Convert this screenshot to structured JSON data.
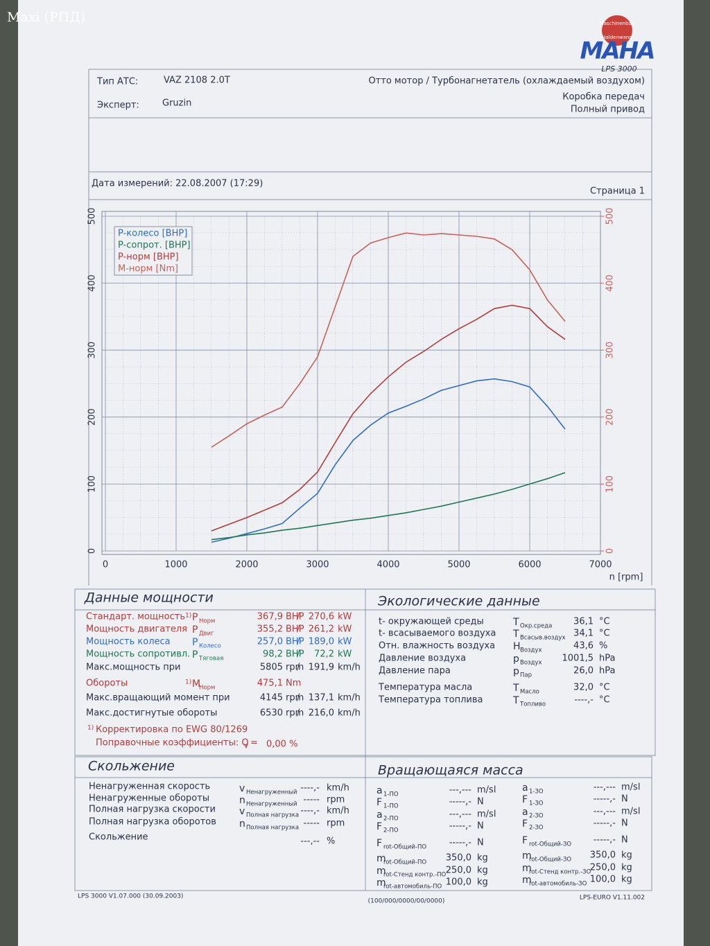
{
  "watermark": "Maxi (РПД)",
  "logo": {
    "ring_top": "Maschinenbau",
    "ring_bottom": "Haldenwang",
    "brand": "MAHA",
    "model": "LPS 3000"
  },
  "header": {
    "type_label": "Тип АТС:",
    "type_value": "VAZ 2108 2.0T",
    "expert_label": "Эксперт:",
    "expert_value": "Gruzin",
    "engine": "Отто мотор / Турбонагнетатель (охлаждаемый воздухом)",
    "gearbox": "Коробка передач",
    "drive": "Полный привод"
  },
  "date": {
    "measured": "Дата измерений: 22.08.2007 (17:29)",
    "page": "Страница 1"
  },
  "chart_data": {
    "type": "line",
    "x_label": "n [rpm]",
    "x": [
      1500,
      1750,
      2000,
      2250,
      2500,
      2750,
      3000,
      3250,
      3500,
      3750,
      4000,
      4250,
      4500,
      4750,
      5000,
      5250,
      5500,
      5750,
      6000,
      6250,
      6500
    ],
    "series": [
      {
        "name": "P-колесо [BHP]",
        "color": "#2e6cc4",
        "values": [
          13,
          19,
          26,
          33,
          41,
          64,
          86,
          129,
          165,
          188,
          206,
          216,
          227,
          240,
          247,
          254,
          257,
          253,
          245,
          216,
          182
        ]
      },
      {
        "name": "P-сопрот. [BHP]",
        "color": "#1f7752",
        "values": [
          17,
          20,
          24,
          27,
          31,
          34,
          38,
          42,
          46,
          49,
          53,
          57,
          62,
          67,
          73,
          79,
          85,
          92,
          100,
          108,
          117
        ]
      },
      {
        "name": "P-норм [BHP]",
        "color": "#b23c3c",
        "values": [
          30,
          40,
          50,
          61,
          72,
          92,
          118,
          162,
          205,
          235,
          260,
          282,
          298,
          316,
          332,
          346,
          362,
          367,
          362,
          335,
          316
        ]
      },
      {
        "name": "M-норм [Nm]",
        "color": "#c4625b",
        "axis": "y2",
        "values": [
          155,
          172,
          190,
          203,
          215,
          250,
          290,
          365,
          440,
          460,
          468,
          475,
          472,
          474,
          472,
          470,
          466,
          450,
          420,
          375,
          343
        ]
      }
    ],
    "xlim": [
      0,
      7000
    ],
    "xticks": [
      0,
      1000,
      2000,
      3000,
      4000,
      5000,
      6000,
      7000
    ],
    "ylim": [
      0,
      500
    ],
    "yticks": [
      0,
      100,
      200,
      300,
      400,
      500
    ],
    "y2lim": [
      0,
      500
    ],
    "y2ticks": [
      0,
      100,
      200,
      300,
      400,
      500
    ],
    "y2_color": "#c4625b",
    "grid": true,
    "legend": "upper left"
  },
  "power": {
    "title": "Данные мощности",
    "rows": [
      {
        "label": "Стандарт. мощность",
        "note": "1)",
        "sym": "P",
        "sub": "Норм",
        "v1": "367,9",
        "u1": "BHP",
        "sep": "/",
        "v2": "270,6",
        "u2": "kW",
        "color": "#b23c3c"
      },
      {
        "label": "Мощность двигателя",
        "sym": "P",
        "sub": "Двиг",
        "v1": "355,2",
        "u1": "BHP",
        "sep": "/",
        "v2": "261,2",
        "u2": "kW",
        "color": "#b23c3c"
      },
      {
        "label": "Мощность колеса",
        "sym": "P",
        "sub": "Колесо",
        "v1": "257,0",
        "u1": "BHP",
        "sep": "/",
        "v2": "189,0",
        "u2": "kW",
        "color": "#2e6cc4"
      },
      {
        "label": "Мощность сопротивл.",
        "sym": "P",
        "sub": "Тяговая",
        "v1": "98,2",
        "u1": "BHP",
        "sep": "/",
        "v2": "72,2",
        "u2": "kW",
        "color": "#1f7752"
      },
      {
        "label": "Макс.мощность при",
        "v1": "5805",
        "u1": "rpm",
        "sep": "/",
        "v2": "191,9",
        "u2": "km/h"
      },
      {
        "label": "Обороты",
        "note": "1)",
        "sym": "M",
        "sub": "Норм",
        "v1": "475,1",
        "u1": "Nm",
        "color": "#b23c3c"
      },
      {
        "label": "Макс.вращающий момент при",
        "v1": "4145",
        "u1": "rpm",
        "sep": "/",
        "v2": "137,1",
        "u2": "km/h"
      },
      {
        "label": "Макс.достигнутые обороты",
        "v1": "6530",
        "u1": "rpm",
        "sep": "/",
        "v2": "216,0",
        "u2": "km/h"
      }
    ],
    "footnote_mark": "1)",
    "footnote": "Корректировка по EWG 80/1269",
    "coef_label": "Поправочные коэффициенты: Q",
    "coef_sub": "V",
    "coef_eq": "=",
    "coef_value": "0,00 %"
  },
  "eco": {
    "title": "Экологические данные",
    "rows": [
      {
        "label": "t- окружающей среды",
        "sym": "T",
        "sub": "Окр.среда",
        "value": "36,1",
        "unit": "°C"
      },
      {
        "label": "t- всасываемого воздуха",
        "sym": "T",
        "sub": "Всасыв.воздух",
        "value": "34,1",
        "unit": "°C"
      },
      {
        "label": "Отн. влажность воздуха",
        "sym": "H",
        "sub": "Воздух",
        "value": "43,6",
        "unit": "%"
      },
      {
        "label": "Давление воздуха",
        "sym": "p",
        "sub": "Воздух",
        "value": "1001,5",
        "unit": "hPa"
      },
      {
        "label": "Давление пара",
        "sym": "p",
        "sub": "Пар",
        "value": "26,0",
        "unit": "hPa"
      },
      {
        "label": "Температура масла",
        "sym": "T",
        "sub": "Масло",
        "value": "32,0",
        "unit": "°C"
      },
      {
        "label": "Температура топлива",
        "sym": "T",
        "sub": "Топливо",
        "value": "----,-",
        "unit": "°C"
      }
    ]
  },
  "slip": {
    "title": "Скольжение",
    "rows": [
      {
        "label": "Ненагруженная  скорость",
        "sym": "v",
        "sub": "Ненагруженный",
        "value": "----,-",
        "unit": "km/h"
      },
      {
        "label": "Ненагруженные  обороты",
        "sym": "n",
        "sub": "Ненагруженный",
        "value": "-----",
        "unit": "rpm"
      },
      {
        "label": "Полная нагрузка скорости",
        "sym": "v",
        "sub": "Полная нагрузка",
        "value": "----,-",
        "unit": "km/h"
      },
      {
        "label": "Полная нагрузка оборотов",
        "sym": "n",
        "sub": "Полная нагрузка",
        "value": "-----",
        "unit": "rpm"
      },
      {
        "label": "Скольжение",
        "value": "---,--",
        "unit": "%"
      }
    ]
  },
  "mass": {
    "title": "Вращающаяся масса",
    "left": [
      {
        "sym": "a",
        "sub": "1-ПО",
        "value": "---,---",
        "unit": "m/sl"
      },
      {
        "sym": "F",
        "sub": "1-ПО",
        "value": "-----,-",
        "unit": "N"
      },
      {
        "sym": "a",
        "sub": "2-ПО",
        "value": "---,---",
        "unit": "m/sl"
      },
      {
        "sym": "F",
        "sub": "2-ПО",
        "value": "-----,-",
        "unit": "N"
      },
      {
        "sym": "F",
        "sub": "rot-Общий-ПО",
        "value": "-----,-",
        "unit": "N"
      },
      {
        "sym": "m",
        "sub": "rot-Общий-ПО",
        "value": "350,0",
        "unit": "kg"
      },
      {
        "sym": "m",
        "sub": "rot-Стенд контр.-ПО",
        "value": "250,0",
        "unit": "kg"
      },
      {
        "sym": "m",
        "sub": "rot-автомобиль-ПО",
        "value": "100,0",
        "unit": "kg"
      }
    ],
    "right": [
      {
        "sym": "a",
        "sub": "1-ЗО",
        "value": "---,---",
        "unit": "m/sl"
      },
      {
        "sym": "F",
        "sub": "1-ЗО",
        "value": "-----,-",
        "unit": "N"
      },
      {
        "sym": "a",
        "sub": "2-ЗО",
        "value": "---,---",
        "unit": "m/sl"
      },
      {
        "sym": "F",
        "sub": "2-ЗО",
        "value": "-----,-",
        "unit": "N"
      },
      {
        "sym": "F",
        "sub": "rot-Общий-ЗО",
        "value": "-----,-",
        "unit": "N"
      },
      {
        "sym": "m",
        "sub": "rot-Общий-ЗО",
        "value": "350,0",
        "unit": "kg"
      },
      {
        "sym": "m",
        "sub": "rot-Стенд контр.-ЗО",
        "value": "250,0",
        "unit": "kg"
      },
      {
        "sym": "m",
        "sub": "rot-автомобиль-ЗО",
        "value": "100,0",
        "unit": "kg"
      }
    ]
  },
  "footer": {
    "left": "LPS 3000 V1.07.000 (30.09.2003)",
    "center": "(100/000/0000/00/0000)",
    "right": "LPS-EURO V1.11.002"
  }
}
